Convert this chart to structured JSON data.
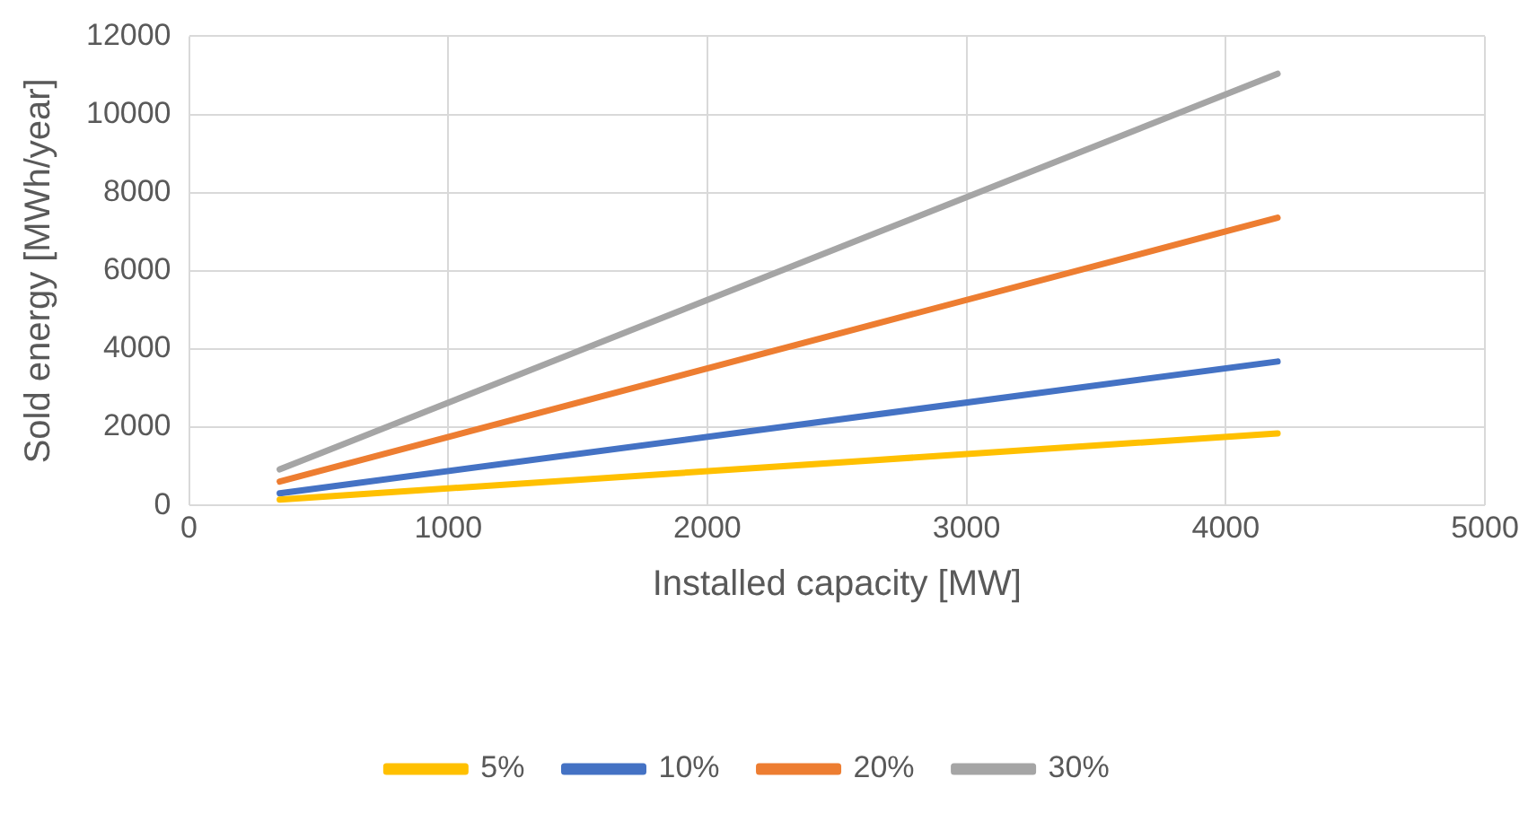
{
  "chart_data": {
    "type": "line",
    "xlabel": "Installed capacity [MW]",
    "ylabel": "Sold energy [MWh/year]",
    "x": [
      350,
      4200
    ],
    "series": [
      {
        "name": "5%",
        "color": "#ffc000",
        "values": [
          150,
          1840
        ]
      },
      {
        "name": "10%",
        "color": "#4472c4",
        "values": [
          310,
          3680
        ]
      },
      {
        "name": "20%",
        "color": "#ed7d31",
        "values": [
          610,
          7360
        ]
      },
      {
        "name": "30%",
        "color": "#a5a5a5",
        "values": [
          920,
          11040
        ]
      }
    ],
    "xlim": [
      0,
      5000
    ],
    "xticks": [
      0,
      1000,
      2000,
      3000,
      4000,
      5000
    ],
    "ylim": [
      0,
      12000
    ],
    "yticks": [
      0,
      2000,
      4000,
      6000,
      8000,
      10000,
      12000
    ],
    "grid": true,
    "legend": "bottom",
    "marker": "none",
    "line_style": "solid"
  }
}
